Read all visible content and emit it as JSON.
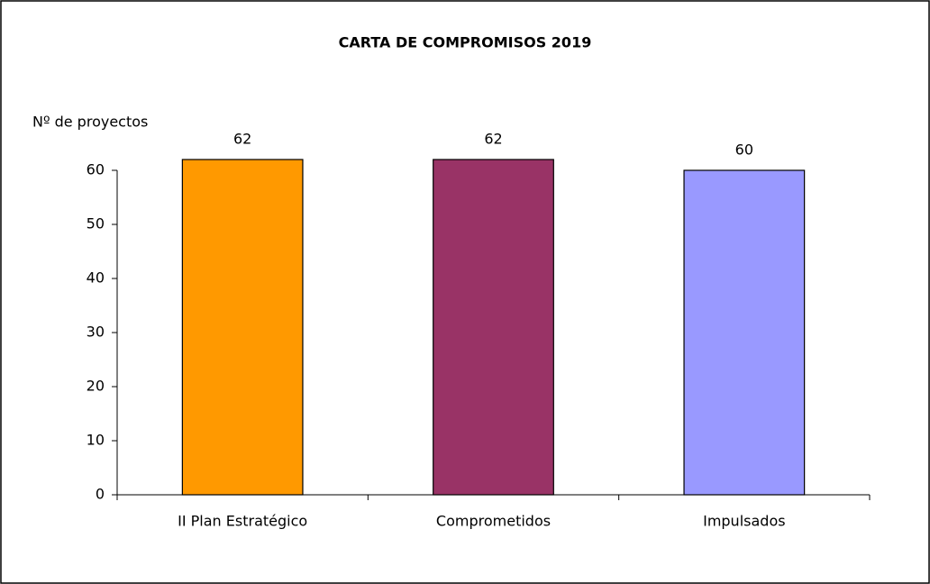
{
  "chart_data": {
    "type": "bar",
    "title": "CARTA DE COMPROMISOS 2019",
    "y_label": "Nº de proyectos",
    "categories": [
      "II Plan Estratégico",
      "Comprometidos",
      "Impulsados"
    ],
    "values": [
      62,
      62,
      60
    ],
    "colors": [
      "#ff9900",
      "#993366",
      "#9999ff"
    ],
    "ylim": [
      0,
      60
    ],
    "yticks": [
      0,
      10,
      20,
      30,
      40,
      50,
      60
    ],
    "grid": false
  }
}
